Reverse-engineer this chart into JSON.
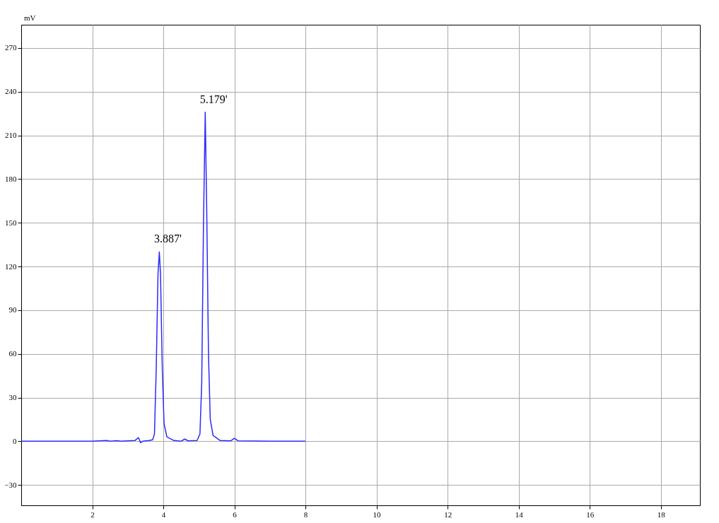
{
  "chart_data": {
    "type": "line",
    "ylabel": "mV",
    "x": [
      0,
      1,
      2,
      2.4,
      2.5,
      2.7,
      2.8,
      3.2,
      3.3,
      3.36,
      3.42,
      3.6,
      3.7,
      3.75,
      3.8,
      3.85,
      3.887,
      3.92,
      3.97,
      4.02,
      4.1,
      4.3,
      4.5,
      4.6,
      4.7,
      4.95,
      5.03,
      5.08,
      5.13,
      5.179,
      5.22,
      5.27,
      5.32,
      5.4,
      5.6,
      5.9,
      6.0,
      6.1,
      7,
      8
    ],
    "series": [
      {
        "color": "#2b2bff",
        "values": [
          0,
          0,
          0,
          0.5,
          0,
          0.4,
          0,
          0.5,
          2.5,
          -1,
          0,
          0.5,
          1,
          5,
          50,
          115,
          130,
          115,
          50,
          12,
          3,
          0.5,
          0,
          1.5,
          0.3,
          0.5,
          5,
          40,
          150,
          226,
          160,
          60,
          15,
          4,
          0.5,
          0.3,
          2,
          0.3,
          0,
          0
        ]
      }
    ],
    "annotations": [
      {
        "text": "3.887'",
        "x": 3.887,
        "y": 130
      },
      {
        "text": "5.179'",
        "x": 5.179,
        "y": 226
      }
    ],
    "xlim": [
      0,
      19.1
    ],
    "xticks": [
      2,
      4,
      6,
      8,
      10,
      12,
      14,
      16,
      18
    ],
    "ylim": [
      -44,
      286
    ],
    "yticks": [
      -30,
      0,
      30,
      60,
      90,
      120,
      150,
      180,
      210,
      240,
      270
    ],
    "grid": true,
    "marker": "none",
    "line_style": "solid"
  }
}
